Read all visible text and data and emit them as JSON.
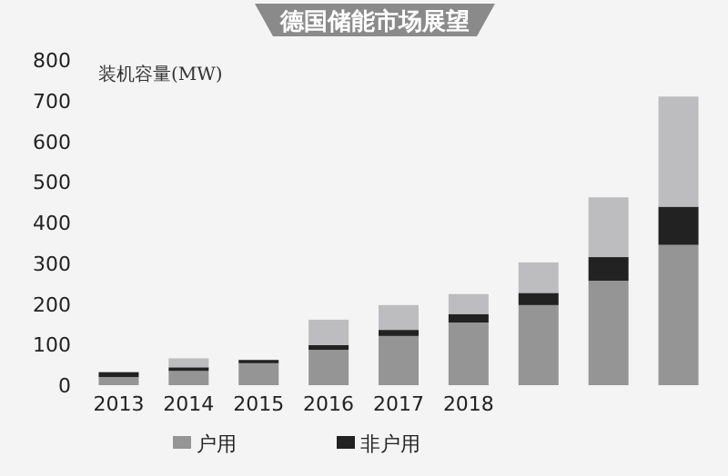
{
  "chart_data": {
    "type": "bar",
    "title": "德国储能市场展望",
    "ylabel": "装机容量(MW)",
    "stacked": true,
    "legend": "bottom",
    "categories": [
      "2013",
      "2014",
      "2015",
      "2016",
      "2017",
      "2018",
      null,
      null,
      null
    ],
    "ylim": [
      0,
      800
    ],
    "yticks": [
      0,
      100,
      200,
      300,
      400,
      500,
      600,
      700,
      800
    ],
    "series": [
      {
        "name": "户用",
        "color": "#959595",
        "values": [
          20,
          35,
          54,
          87,
          121,
          154,
          197,
          257,
          345
        ]
      },
      {
        "name": "非户用",
        "color": "#222222",
        "values": [
          12,
          9,
          8,
          12,
          15,
          21,
          30,
          58,
          94
        ]
      },
      {
        "color": "#bdbdbf",
        "values": [
          null,
          22,
          null,
          62,
          61,
          49,
          75,
          147,
          271
        ]
      }
    ]
  }
}
